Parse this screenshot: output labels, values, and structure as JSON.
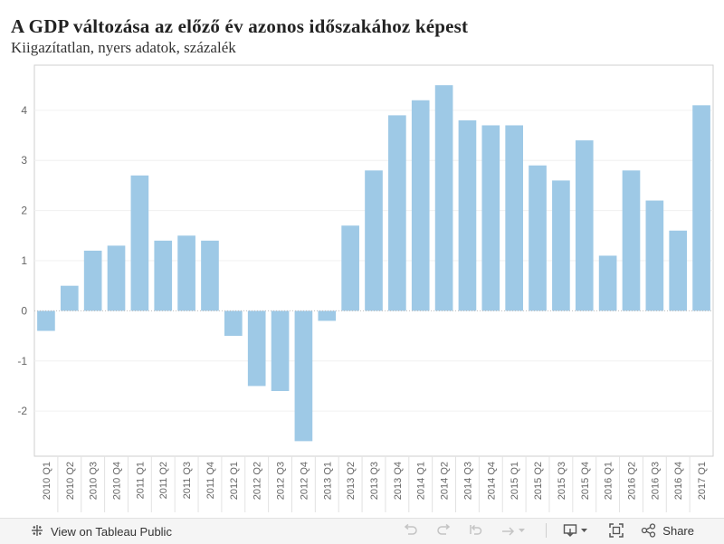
{
  "chart_data": {
    "type": "bar",
    "title": "A GDP változása az előző év azonos időszakához képest",
    "subtitle": "Kiigazítatlan, nyers adatok, százalék",
    "categories": [
      "2010 Q1",
      "2010 Q2",
      "2010 Q3",
      "2010 Q4",
      "2011 Q1",
      "2011 Q2",
      "2011 Q3",
      "2011 Q4",
      "2012 Q1",
      "2012 Q2",
      "2012 Q3",
      "2012 Q4",
      "2013 Q1",
      "2013 Q2",
      "2013 Q3",
      "2013 Q4",
      "2014 Q1",
      "2014 Q2",
      "2014 Q3",
      "2014 Q4",
      "2015 Q1",
      "2015 Q2",
      "2015 Q3",
      "2015 Q4",
      "2016 Q1",
      "2016 Q2",
      "2016 Q3",
      "2016 Q4",
      "2017 Q1"
    ],
    "values": [
      -0.4,
      0.5,
      1.2,
      1.3,
      2.7,
      1.4,
      1.5,
      1.4,
      -0.5,
      -1.5,
      -1.6,
      -2.6,
      -0.2,
      1.7,
      2.8,
      3.9,
      4.2,
      4.5,
      3.8,
      3.7,
      3.7,
      2.9,
      2.6,
      3.4,
      1.1,
      2.8,
      2.2,
      1.6,
      4.1
    ],
    "yticks": [
      -2,
      -1,
      0,
      1,
      2,
      3,
      4
    ],
    "ylim": [
      -2.9,
      4.9
    ],
    "xlabel": "",
    "ylabel": "",
    "bar_color": "#9ec9e6",
    "grid": true
  },
  "toolbar": {
    "view_label": "View on Tableau Public",
    "share_label": "Share"
  }
}
